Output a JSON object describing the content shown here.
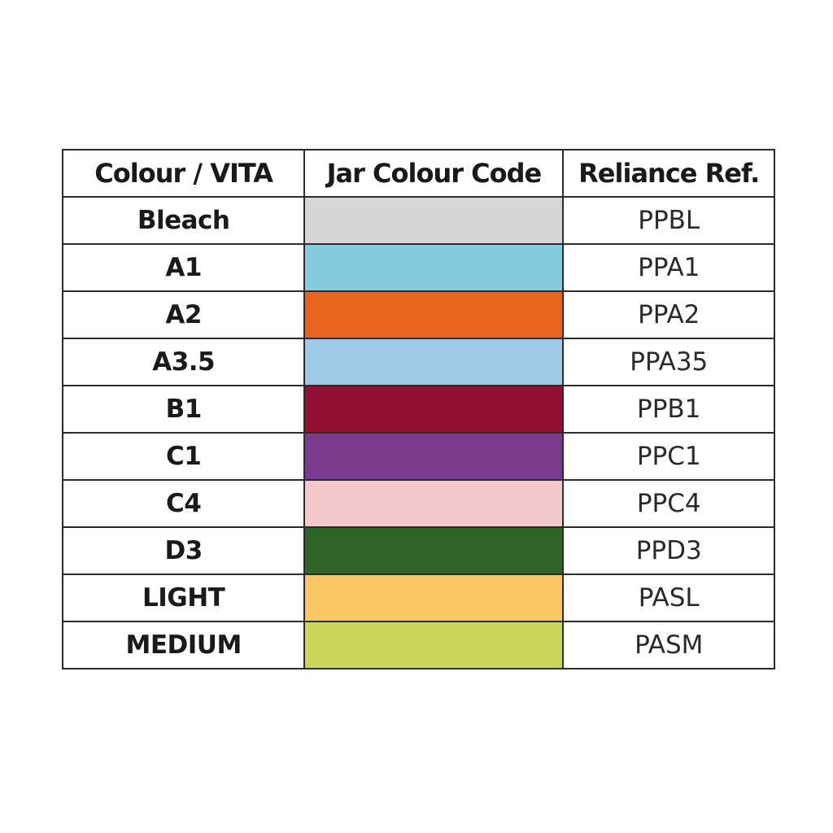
{
  "table": {
    "headers": [
      "Colour / VITA",
      "Jar Colour Code",
      "Reliance Ref."
    ],
    "rows": [
      {
        "shade": "Bleach",
        "color": "#d6d6d6",
        "ref": "PPBL"
      },
      {
        "shade": "A1",
        "color": "#85cbdb",
        "ref": "PPA1"
      },
      {
        "shade": "A2",
        "color": "#e8641f",
        "ref": "PPA2"
      },
      {
        "shade": "A3.5",
        "color": "#a0c9e7",
        "ref": "PPA35"
      },
      {
        "shade": "B1",
        "color": "#930f33",
        "ref": "PPB1"
      },
      {
        "shade": "C1",
        "color": "#7a3b8c",
        "ref": "PPC1"
      },
      {
        "shade": "C4",
        "color": "#f5c9cb",
        "ref": "PPC4"
      },
      {
        "shade": "D3",
        "color": "#2e6427",
        "ref": "PPD3"
      },
      {
        "shade": "LIGHT",
        "color": "#fcc866",
        "ref": "PASL"
      },
      {
        "shade": "MEDIUM",
        "color": "#cbd659",
        "ref": "PASM"
      }
    ]
  }
}
